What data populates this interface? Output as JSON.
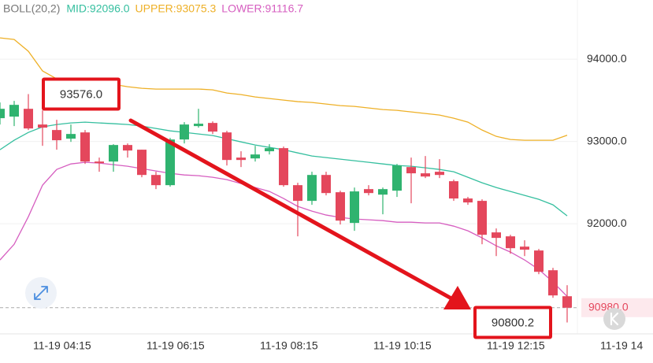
{
  "chart_data": {
    "type": "candlestick",
    "indicator": "BOLL(20,2)",
    "categories": [
      null,
      null,
      null,
      null,
      null,
      "11-19 04:15",
      null,
      null,
      null,
      null,
      null,
      null,
      null,
      "11-19 06:15",
      null,
      null,
      null,
      null,
      null,
      null,
      null,
      "11-19 08:15",
      null,
      null,
      null,
      null,
      null,
      null,
      null,
      "11-19 10:15",
      null,
      null,
      null,
      null,
      null,
      null,
      null,
      "11-19 12:15",
      null,
      null,
      null,
      null,
      null,
      null,
      null,
      "11-19 14"
    ],
    "open": [
      93283,
      93302,
      93397,
      93206,
      93139,
      93034,
      93110,
      92756,
      92756,
      92957,
      92900,
      92593,
      92469,
      93024,
      93187,
      93225,
      93110,
      92804,
      92794,
      92881,
      92919,
      92469,
      92278,
      92593,
      92383,
      92010,
      92421,
      92354,
      92402,
      92689,
      92613,
      92632,
      92517,
      92307,
      92278,
      91895,
      91847,
      91722,
      91675,
      91435,
      91119,
      null,
      null,
      null,
      null,
      null
    ],
    "high": [
      93474,
      93493,
      93576,
      93378,
      93263,
      93206,
      93139,
      92804,
      92967,
      92976,
      92900,
      92632,
      93043,
      93235,
      93397,
      93244,
      93129,
      92881,
      92947,
      92967,
      92938,
      92498,
      92632,
      92632,
      92402,
      92440,
      92469,
      92440,
      92727,
      92804,
      92823,
      92785,
      92536,
      92326,
      92297,
      91943,
      91866,
      91799,
      91694,
      91464,
      91253,
      null,
      null,
      null,
      null,
      null
    ],
    "low": [
      93206,
      93187,
      93139,
      92947,
      92900,
      92995,
      92727,
      92632,
      92632,
      92804,
      92565,
      92421,
      92450,
      92976,
      93168,
      93091,
      92708,
      92689,
      92756,
      92842,
      92450,
      91847,
      92230,
      92345,
      91991,
      91914,
      92345,
      92115,
      92326,
      92249,
      92555,
      92555,
      92278,
      92230,
      91751,
      91607,
      91636,
      91607,
      91387,
      91100,
      90800.2,
      null,
      null,
      null,
      null,
      null
    ],
    "close": [
      93397,
      93445,
      93158,
      93168,
      93015,
      93091,
      92756,
      92737,
      92957,
      92890,
      92593,
      92469,
      93024,
      93206,
      93216,
      93120,
      92775,
      92775,
      92842,
      92919,
      92469,
      92278,
      92593,
      92373,
      92038,
      92393,
      92373,
      92421,
      92708,
      92613,
      92574,
      92593,
      92307,
      92259,
      91866,
      91828,
      91703,
      91685,
      91416,
      91129,
      90980,
      null,
      null,
      null,
      null,
      null
    ],
    "up_color": "#2fb36f",
    "down_color": "#e4475c",
    "series": [
      {
        "name": "MID:92096.0",
        "color": "#35bf9f",
        "values": [
          92900,
          93015,
          93110,
          93177,
          93206,
          93225,
          93235,
          93225,
          93216,
          93206,
          93187,
          93158,
          93129,
          93110,
          93091,
          93072,
          93034,
          92995,
          92957,
          92928,
          92900,
          92861,
          92823,
          92804,
          92785,
          92766,
          92747,
          92727,
          92708,
          92699,
          92680,
          92660,
          92632,
          92565,
          92498,
          92440,
          92393,
          92345,
          92297,
          92230,
          92096.0,
          null,
          null,
          null,
          null,
          null
        ]
      },
      {
        "name": "UPPER:93075.3",
        "color": "#eeb027",
        "values": [
          94259,
          94240,
          94096,
          93857,
          93761,
          93704,
          93694,
          93694,
          93694,
          93665,
          93646,
          93637,
          93637,
          93637,
          93637,
          93627,
          93589,
          93570,
          93541,
          93522,
          93503,
          93484,
          93474,
          93455,
          93436,
          93426,
          93407,
          93388,
          93378,
          93359,
          93340,
          93321,
          93283,
          93235,
          93139,
          93062,
          93024,
          93015,
          93015,
          93015,
          93075.3,
          null,
          null,
          null,
          null,
          null
        ]
      },
      {
        "name": "LOWER:91116.7",
        "color": "#d65ec0",
        "values": [
          91560,
          91751,
          92086,
          92469,
          92660,
          92727,
          92747,
          92737,
          92718,
          92699,
          92670,
          92641,
          92613,
          92593,
          92584,
          92565,
          92536,
          92488,
          92440,
          92393,
          92307,
          92211,
          92153,
          92106,
          92077,
          92058,
          92048,
          92038,
          92019,
          92019,
          92010,
          92010,
          91971,
          91914,
          91828,
          91732,
          91656,
          91560,
          91445,
          91292,
          91116.7,
          null,
          null,
          null,
          null,
          null
        ]
      }
    ],
    "ylim": [
      90700,
      94480
    ],
    "yticks": [
      {
        "value": 92000,
        "label": "92000.0"
      },
      {
        "value": 93000,
        "label": "93000.0"
      },
      {
        "value": 94000,
        "label": "94000.0"
      }
    ],
    "grid": true,
    "last_price": {
      "value": 90980,
      "label": "90980.0"
    },
    "annotations": [
      {
        "value": 93576,
        "label": "93576.0"
      },
      {
        "value": 90800.2,
        "label": "90800.2"
      }
    ],
    "annotation_color": "#e3141c"
  }
}
